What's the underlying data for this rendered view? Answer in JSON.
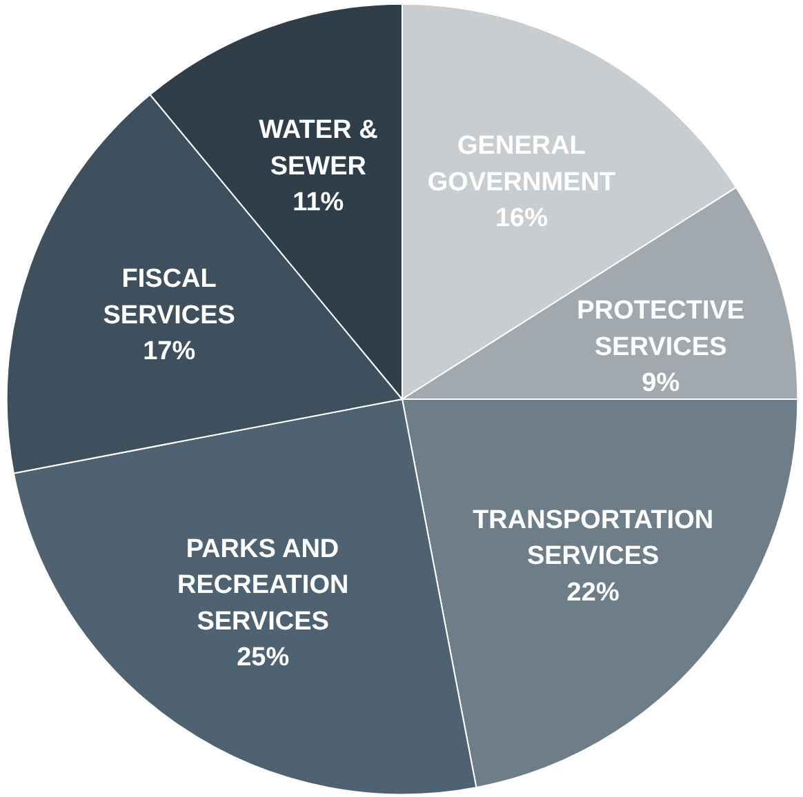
{
  "chart_data": {
    "type": "pie",
    "categories": [
      "GENERAL\nGOVERNMENT",
      "PROTECTIVE\nSERVICES",
      "TRANSPORTATION\nSERVICES",
      "PARKS AND\nRECREATION\nSERVICES",
      "FISCAL\nSERVICES",
      "WATER &\nSEWER"
    ],
    "values": [
      16,
      9,
      22,
      25,
      17,
      11
    ],
    "value_labels": [
      "16%",
      "9%",
      "22%",
      "25%",
      "17%",
      "11%"
    ],
    "colors": [
      "#c9cdd0",
      "#a2a9ae",
      "#6e7e88",
      "#4f6271",
      "#3e505d",
      "#2f3e48"
    ]
  }
}
